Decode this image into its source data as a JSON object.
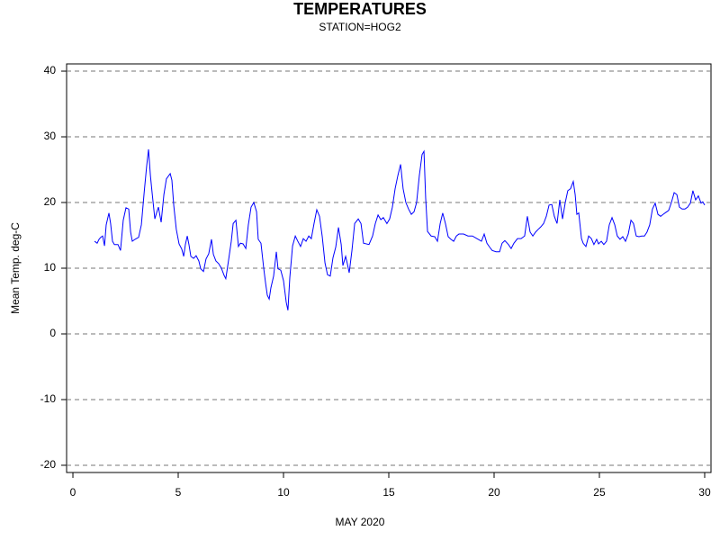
{
  "chart_data": {
    "type": "line",
    "title": "TEMPERATURES",
    "subtitle": "STATION=HOG2",
    "x_label": "MAY 2020",
    "y_label": "Mean Temp. deg-C",
    "xlim": [
      -0.3,
      30.3
    ],
    "ylim": [
      -21.1,
      41.1
    ],
    "xticks": [
      0,
      5,
      10,
      15,
      20,
      25,
      30
    ],
    "yticks": [
      -20,
      -10,
      0,
      10,
      20,
      30,
      40
    ],
    "grid": true,
    "series": [
      {
        "color": "#0000ff",
        "x": [
          1.03,
          1.15,
          1.24,
          1.32,
          1.41,
          1.5,
          1.58,
          1.71,
          1.79,
          1.88,
          1.97,
          2.14,
          2.26,
          2.39,
          2.52,
          2.65,
          2.74,
          2.82,
          2.95,
          3.12,
          3.25,
          3.38,
          3.5,
          3.59,
          3.68,
          3.76,
          3.89,
          3.97,
          4.06,
          4.19,
          4.32,
          4.44,
          4.62,
          4.7,
          4.79,
          4.91,
          5.04,
          5.17,
          5.26,
          5.34,
          5.43,
          5.51,
          5.6,
          5.73,
          5.85,
          5.98,
          6.07,
          6.2,
          6.32,
          6.45,
          6.58,
          6.67,
          6.79,
          6.92,
          7.05,
          7.18,
          7.26,
          7.39,
          7.52,
          7.61,
          7.74,
          7.86,
          7.95,
          8.08,
          8.21,
          8.33,
          8.46,
          8.59,
          8.72,
          8.8,
          8.93,
          9.06,
          9.15,
          9.23,
          9.32,
          9.4,
          9.53,
          9.66,
          9.74,
          9.87,
          10.0,
          10.13,
          10.21,
          10.3,
          10.43,
          10.56,
          10.68,
          10.81,
          10.94,
          11.07,
          11.2,
          11.32,
          11.45,
          11.58,
          11.71,
          11.84,
          11.97,
          12.09,
          12.22,
          12.35,
          12.48,
          12.61,
          12.74,
          12.82,
          12.95,
          13.03,
          13.12,
          13.25,
          13.38,
          13.55,
          13.68,
          13.8,
          14.06,
          14.23,
          14.36,
          14.49,
          14.62,
          14.74,
          14.91,
          15.04,
          15.17,
          15.3,
          15.43,
          15.56,
          15.68,
          15.81,
          15.94,
          16.07,
          16.2,
          16.32,
          16.45,
          16.58,
          16.67,
          16.75,
          16.84,
          17.01,
          17.18,
          17.31,
          17.44,
          17.56,
          17.69,
          17.82,
          17.95,
          18.08,
          18.21,
          18.33,
          18.55,
          18.76,
          18.97,
          19.19,
          19.4,
          19.53,
          19.66,
          19.79,
          19.91,
          20.09,
          20.26,
          20.38,
          20.51,
          20.68,
          20.81,
          20.94,
          21.11,
          21.28,
          21.45,
          21.58,
          21.71,
          21.84,
          21.97,
          22.09,
          22.22,
          22.35,
          22.48,
          22.61,
          22.74,
          22.86,
          22.99,
          23.12,
          23.25,
          23.38,
          23.5,
          23.63,
          23.76,
          23.85,
          23.93,
          24.02,
          24.15,
          24.23,
          24.36,
          24.49,
          24.62,
          24.74,
          24.87,
          24.96,
          25.09,
          25.21,
          25.34,
          25.47,
          25.6,
          25.73,
          25.85,
          25.98,
          26.11,
          26.24,
          26.37,
          26.5,
          26.62,
          26.75,
          26.88,
          27.01,
          27.14,
          27.26,
          27.39,
          27.52,
          27.65,
          27.78,
          27.91,
          28.03,
          28.16,
          28.29,
          28.42,
          28.55,
          28.68,
          28.8,
          28.93,
          29.06,
          29.19,
          29.32,
          29.44,
          29.57,
          29.7,
          29.83,
          29.91,
          30.0
        ],
        "values": [
          14.1,
          13.8,
          14.4,
          14.7,
          14.9,
          13.4,
          16.6,
          18.4,
          16.8,
          14.1,
          13.6,
          13.6,
          12.7,
          17.3,
          19.2,
          19.0,
          15.5,
          14.1,
          14.4,
          14.7,
          16.6,
          21.4,
          25.5,
          28.1,
          24.1,
          21.5,
          17.5,
          18.4,
          19.3,
          17.0,
          21.2,
          23.6,
          24.4,
          23.4,
          19.5,
          15.9,
          13.7,
          12.9,
          11.8,
          13.6,
          14.9,
          13.6,
          11.8,
          11.5,
          11.9,
          11.1,
          9.9,
          9.5,
          11.4,
          12.2,
          14.4,
          12.1,
          11.1,
          10.7,
          10.0,
          8.9,
          8.4,
          11.2,
          14.1,
          16.8,
          17.3,
          13.3,
          13.8,
          13.7,
          13.0,
          16.6,
          19.3,
          20.0,
          18.6,
          14.4,
          13.8,
          10.0,
          7.7,
          5.9,
          5.3,
          7.0,
          8.8,
          12.5,
          9.9,
          9.7,
          8.1,
          4.8,
          3.6,
          8.6,
          13.4,
          14.9,
          14.1,
          13.3,
          14.5,
          14.1,
          14.9,
          14.5,
          16.8,
          18.9,
          17.9,
          14.8,
          10.8,
          9.0,
          8.8,
          11.6,
          13.2,
          16.2,
          13.6,
          10.4,
          11.8,
          10.7,
          9.3,
          12.7,
          16.8,
          17.5,
          16.8,
          13.8,
          13.6,
          14.9,
          16.8,
          18.1,
          17.4,
          17.7,
          16.8,
          17.5,
          19.3,
          22.1,
          24.1,
          25.8,
          22.1,
          20.0,
          19.0,
          18.2,
          18.6,
          20.0,
          24.1,
          27.3,
          27.8,
          20.7,
          15.6,
          14.9,
          14.8,
          14.1,
          16.8,
          18.4,
          16.8,
          14.8,
          14.4,
          14.1,
          14.9,
          15.2,
          15.2,
          14.9,
          14.9,
          14.5,
          14.1,
          15.2,
          13.8,
          13.2,
          12.7,
          12.5,
          12.5,
          13.8,
          14.2,
          13.6,
          13.0,
          13.8,
          14.5,
          14.5,
          14.9,
          17.9,
          15.5,
          14.9,
          15.5,
          15.9,
          16.3,
          16.8,
          17.9,
          19.6,
          19.7,
          17.9,
          16.8,
          20.4,
          17.5,
          20.0,
          21.8,
          22.1,
          23.2,
          21.2,
          18.2,
          18.4,
          14.5,
          13.8,
          13.3,
          14.9,
          14.5,
          13.6,
          14.4,
          13.7,
          14.1,
          13.6,
          14.1,
          16.6,
          17.7,
          16.6,
          14.9,
          14.4,
          14.8,
          14.1,
          15.2,
          17.3,
          16.8,
          14.9,
          14.8,
          14.9,
          14.9,
          15.5,
          16.6,
          19.0,
          19.9,
          18.2,
          17.9,
          18.2,
          18.5,
          18.8,
          20.0,
          21.5,
          21.2,
          19.3,
          19.0,
          19.0,
          19.3,
          19.9,
          21.8,
          20.4,
          21.0,
          19.9,
          20.1,
          19.6
        ]
      }
    ]
  }
}
